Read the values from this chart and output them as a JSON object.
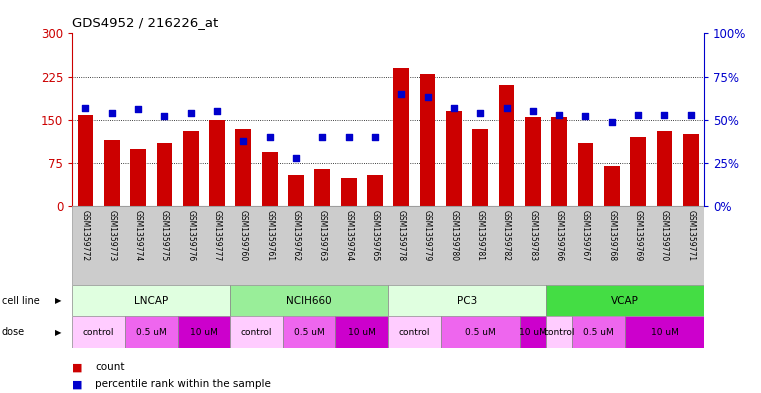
{
  "title": "GDS4952 / 216226_at",
  "samples": [
    "GSM1359772",
    "GSM1359773",
    "GSM1359774",
    "GSM1359775",
    "GSM1359776",
    "GSM1359777",
    "GSM1359760",
    "GSM1359761",
    "GSM1359762",
    "GSM1359763",
    "GSM1359764",
    "GSM1359765",
    "GSM1359778",
    "GSM1359779",
    "GSM1359780",
    "GSM1359781",
    "GSM1359782",
    "GSM1359783",
    "GSM1359766",
    "GSM1359767",
    "GSM1359768",
    "GSM1359769",
    "GSM1359770",
    "GSM1359771"
  ],
  "counts": [
    158,
    115,
    100,
    110,
    130,
    150,
    135,
    95,
    55,
    65,
    50,
    55,
    240,
    230,
    165,
    135,
    210,
    155,
    155,
    110,
    70,
    120,
    130,
    125
  ],
  "percentiles": [
    57,
    54,
    56,
    52,
    54,
    55,
    38,
    40,
    28,
    40,
    40,
    40,
    65,
    63,
    57,
    54,
    57,
    55,
    53,
    52,
    49,
    53,
    53,
    53
  ],
  "bar_color": "#cc0000",
  "dot_color": "#0000cc",
  "ylim_left": [
    0,
    300
  ],
  "ylim_right": [
    0,
    100
  ],
  "yticks_left": [
    0,
    75,
    150,
    225,
    300
  ],
  "yticks_right": [
    0,
    25,
    50,
    75,
    100
  ],
  "ytick_labels_left": [
    "0",
    "75",
    "150",
    "225",
    "300"
  ],
  "ytick_labels_right": [
    "0%",
    "25%",
    "50%",
    "75%",
    "100%"
  ],
  "cell_lines": [
    "LNCAP",
    "NCIH660",
    "PC3",
    "VCAP"
  ],
  "cell_line_spans": [
    [
      0,
      6
    ],
    [
      6,
      12
    ],
    [
      12,
      18
    ],
    [
      18,
      24
    ]
  ],
  "cell_line_colors": [
    "#e0ffe0",
    "#99ee99",
    "#e0ffe0",
    "#44dd44"
  ],
  "dose_pattern": [
    {
      "label": "control",
      "color": "#ffccff",
      "start": 0,
      "end": 2
    },
    {
      "label": "0.5 uM",
      "color": "#ee66ee",
      "start": 2,
      "end": 4
    },
    {
      "label": "10 uM",
      "color": "#cc00cc",
      "start": 4,
      "end": 6
    },
    {
      "label": "control",
      "color": "#ffccff",
      "start": 6,
      "end": 8
    },
    {
      "label": "0.5 uM",
      "color": "#ee66ee",
      "start": 8,
      "end": 10
    },
    {
      "label": "10 uM",
      "color": "#cc00cc",
      "start": 10,
      "end": 12
    },
    {
      "label": "control",
      "color": "#ffccff",
      "start": 12,
      "end": 14
    },
    {
      "label": "0.5 uM",
      "color": "#ee66ee",
      "start": 14,
      "end": 17
    },
    {
      "label": "10 uM",
      "color": "#cc00cc",
      "start": 17,
      "end": 18
    },
    {
      "label": "control",
      "color": "#ffccff",
      "start": 18,
      "end": 19
    },
    {
      "label": "0.5 uM",
      "color": "#ee66ee",
      "start": 19,
      "end": 21
    },
    {
      "label": "10 uM",
      "color": "#cc00cc",
      "start": 21,
      "end": 24
    }
  ],
  "background_color": "#ffffff",
  "axis_label_color_left": "#cc0000",
  "axis_label_color_right": "#0000cc",
  "xtick_label_bg": "#cccccc"
}
